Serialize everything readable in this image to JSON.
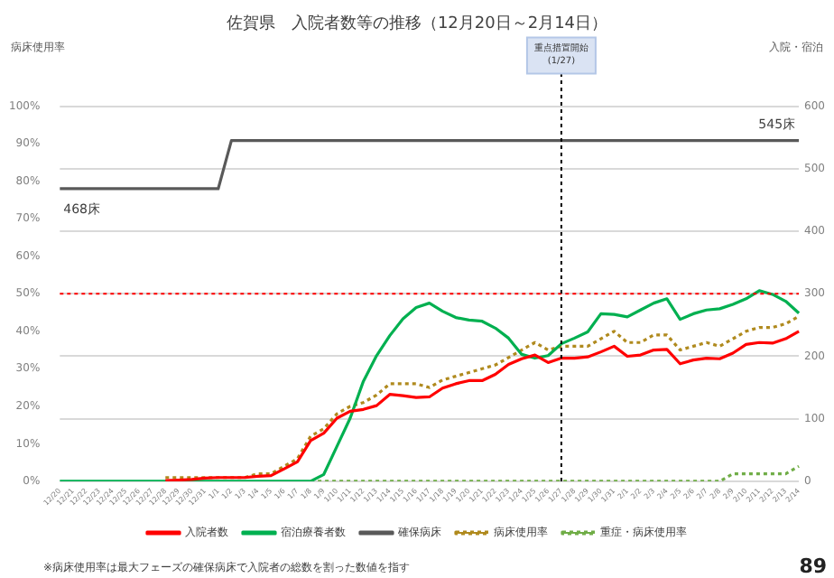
{
  "chart_data": {
    "type": "line",
    "title": "佐賀県　入院者数等の推移（12月20日～2月14日）",
    "ylabel": "病床使用率",
    "y2label": "入院・宿泊",
    "categories": [
      "12/20",
      "12/21",
      "12/22",
      "12/23",
      "12/24",
      "12/25",
      "12/26",
      "12/27",
      "12/28",
      "12/29",
      "12/30",
      "12/31",
      "1/1",
      "1/2",
      "1/3",
      "1/4",
      "1/5",
      "1/6",
      "1/7",
      "1/8",
      "1/9",
      "1/10",
      "1/11",
      "1/12",
      "1/13",
      "1/14",
      "1/15",
      "1/16",
      "1/17",
      "1/18",
      "1/19",
      "1/20",
      "1/21",
      "1/22",
      "1/23",
      "1/24",
      "1/25",
      "1/26",
      "1/27",
      "1/28",
      "1/29",
      "1/30",
      "1/31",
      "2/1",
      "2/2",
      "2/3",
      "2/4",
      "2/5",
      "2/6",
      "2/7",
      "2/8",
      "2/9",
      "2/10",
      "2/11",
      "2/12",
      "2/13",
      "2/14"
    ],
    "series": [
      {
        "name": "入院者数",
        "color": "#ff0000",
        "axis": "y2",
        "line_style": "solid",
        "values": [
          null,
          null,
          null,
          null,
          null,
          null,
          null,
          null,
          1,
          2,
          3,
          5,
          6,
          6,
          6,
          8,
          9,
          20,
          31,
          65,
          77,
          101,
          112,
          115,
          121,
          139,
          137,
          134,
          135,
          149,
          156,
          161,
          161,
          171,
          187,
          196,
          202,
          190,
          197,
          197,
          199,
          207,
          216,
          200,
          202,
          210,
          211,
          188,
          194,
          197,
          196,
          205,
          219,
          222,
          221,
          228,
          240
        ]
      },
      {
        "name": "宿泊療養者数",
        "color": "#00b050",
        "axis": "y2",
        "line_style": "solid",
        "values": [
          0,
          0,
          0,
          0,
          0,
          0,
          0,
          0,
          0,
          0,
          0,
          0,
          0,
          0,
          0,
          0,
          0,
          0,
          0,
          0,
          11,
          56,
          101,
          160,
          201,
          233,
          260,
          278,
          285,
          272,
          262,
          258,
          256,
          245,
          229,
          203,
          197,
          201,
          220,
          229,
          239,
          268,
          267,
          263,
          274,
          285,
          292,
          259,
          268,
          274,
          276,
          283,
          292,
          305,
          299,
          288,
          269
        ]
      },
      {
        "name": "確保病床",
        "color": "#595959",
        "axis": "y2",
        "line_style": "solid",
        "values": [
          468,
          468,
          468,
          468,
          468,
          468,
          468,
          468,
          468,
          468,
          468,
          468,
          468,
          545,
          545,
          545,
          545,
          545,
          545,
          545,
          545,
          545,
          545,
          545,
          545,
          545,
          545,
          545,
          545,
          545,
          545,
          545,
          545,
          545,
          545,
          545,
          545,
          545,
          545,
          545,
          545,
          545,
          545,
          545,
          545,
          545,
          545,
          545,
          545,
          545,
          545,
          545,
          545,
          545,
          545,
          545,
          545
        ]
      },
      {
        "name": "病床使用率",
        "color": "#b08a1e",
        "axis": "y",
        "line_style": "dotted",
        "values": [
          null,
          null,
          null,
          null,
          null,
          null,
          null,
          null,
          1,
          1,
          1,
          1,
          1,
          1,
          1,
          2,
          2,
          4,
          6,
          12,
          14,
          18,
          20,
          21,
          23,
          26,
          26,
          26,
          25,
          27,
          28,
          29,
          30,
          31,
          33,
          35,
          37,
          35,
          36,
          36,
          36,
          38,
          40,
          37,
          37,
          39,
          39,
          35,
          36,
          37,
          36,
          38,
          40,
          41,
          41,
          42,
          44
        ]
      },
      {
        "name": "重症・病床使用率",
        "color": "#70ad47",
        "axis": "y",
        "line_style": "dotted",
        "values": [
          null,
          null,
          null,
          null,
          null,
          null,
          null,
          null,
          null,
          null,
          null,
          null,
          null,
          null,
          null,
          null,
          null,
          null,
          null,
          0,
          0,
          0,
          0,
          0,
          0,
          0,
          0,
          0,
          0,
          0,
          0,
          0,
          0,
          0,
          0,
          0,
          0,
          0,
          0,
          0,
          0,
          0,
          0,
          0,
          0,
          0,
          0,
          0,
          0,
          0,
          0,
          2,
          2,
          2,
          2,
          2,
          4
        ]
      }
    ],
    "ylim": [
      0,
      100
    ],
    "yticks": [
      {
        "value": 0,
        "label": "0%"
      },
      {
        "value": 10,
        "label": "10%"
      },
      {
        "value": 20,
        "label": "20%"
      },
      {
        "value": 30,
        "label": "30%"
      },
      {
        "value": 40,
        "label": "40%"
      },
      {
        "value": 50,
        "label": "50%"
      },
      {
        "value": 60,
        "label": "60%"
      },
      {
        "value": 70,
        "label": "70%"
      },
      {
        "value": 80,
        "label": "80%"
      },
      {
        "value": 90,
        "label": "90%"
      },
      {
        "value": 100,
        "label": "100%"
      }
    ],
    "y2lim": [
      0,
      600
    ],
    "y2ticks": [
      0,
      100,
      200,
      300,
      400,
      500,
      600
    ],
    "grid": "y",
    "legend": "bottom",
    "marker": "none",
    "ref_lines": [
      {
        "axis": "y",
        "value": 50,
        "color": "#ff0000",
        "line_style": "dotted"
      },
      {
        "axis": "x",
        "value": "1/27",
        "label": "重点措置開始 (1/27)",
        "color": "#000000",
        "line_style": "dotted"
      }
    ],
    "annotations": [
      "468床",
      "545床",
      "※病床使用率は最大フェーズの確保病床で入院者の総数を割った数値を指す",
      "89"
    ]
  }
}
